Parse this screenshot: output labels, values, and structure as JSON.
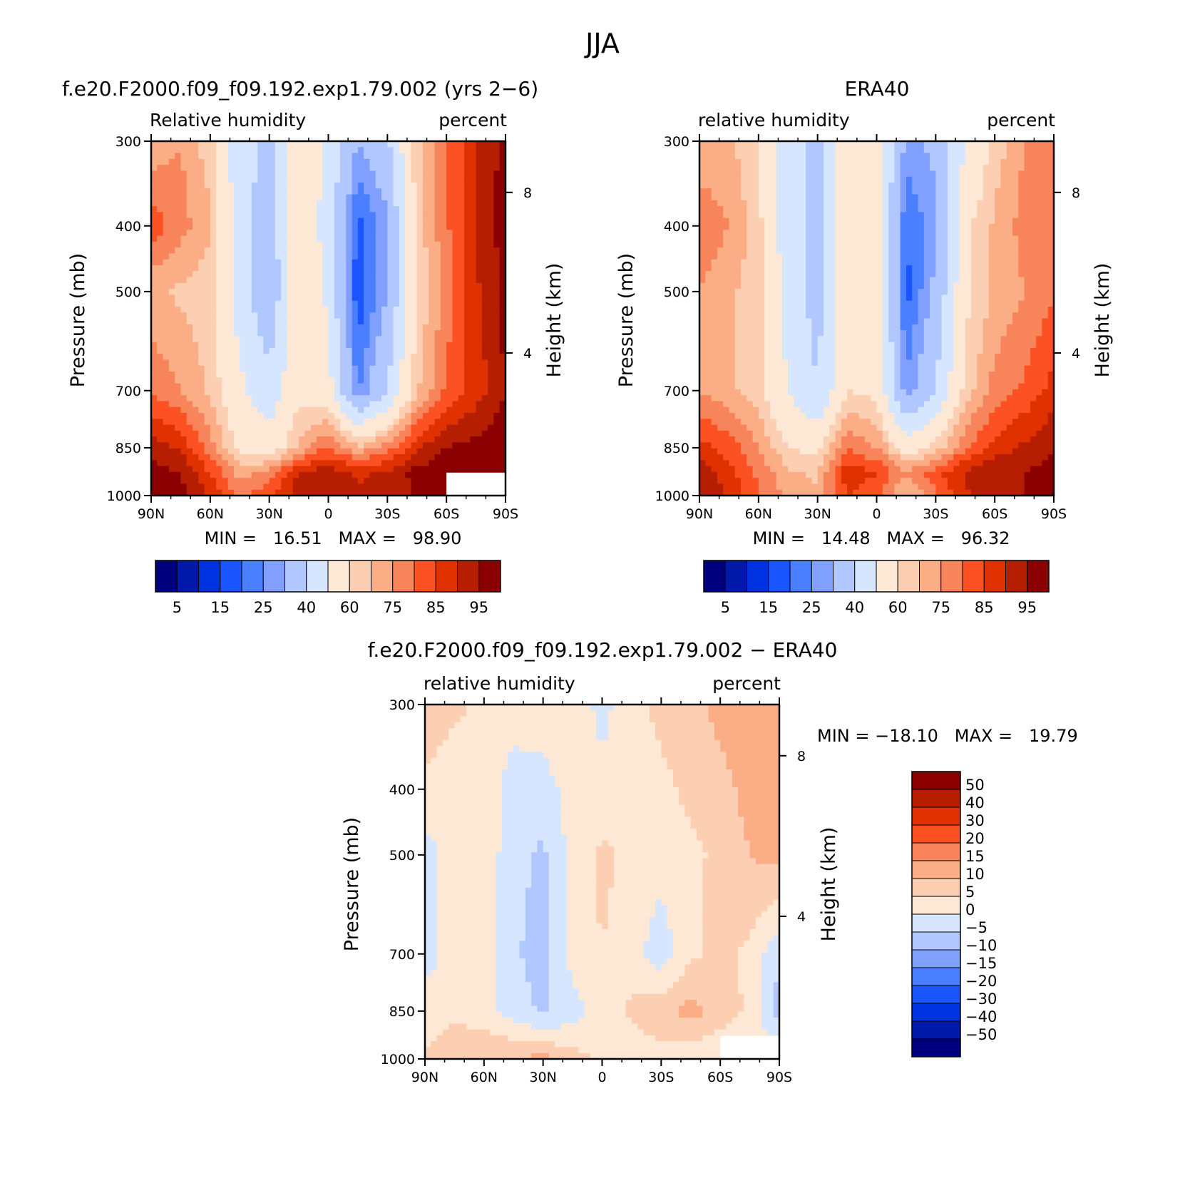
{
  "main_title": "JJA",
  "colors": {
    "rh_levels": [
      "#00007f",
      "#0019a8",
      "#0033e0",
      "#1a55ff",
      "#4a80ff",
      "#809fff",
      "#b0c8ff",
      "#d6e6ff",
      "#fde8d6",
      "#fccfb3",
      "#fbad85",
      "#f8845c",
      "#fb5123",
      "#e03100",
      "#b51e00",
      "#8a0000"
    ],
    "diff_levels": [
      "#00007f",
      "#0019a8",
      "#0033e0",
      "#1a55ff",
      "#4a80ff",
      "#809fff",
      "#b0c8ff",
      "#d6e6ff",
      "#fde8d6",
      "#fccfb3",
      "#fbad85",
      "#f8845c",
      "#fb5123",
      "#e03100",
      "#b51e00",
      "#8a0000"
    ]
  },
  "panels": {
    "model": {
      "title": "f.e20.F2000.f09_f09.192.exp1.79.002 (yrs 2−6)",
      "left_label": "Relative humidity",
      "right_label": "percent",
      "ylabel": "Pressure (mb)",
      "ylabel_right": "Height (km)",
      "stats": "MIN =   16.51   MAX =   98.90"
    },
    "obs": {
      "title": "ERA40",
      "left_label": "relative humidity",
      "right_label": "percent",
      "ylabel": "Pressure (mb)",
      "ylabel_right": "Height (km)",
      "stats": "MIN =   14.48   MAX =   96.32"
    },
    "diff": {
      "title": "f.e20.F2000.f09_f09.192.exp1.79.002 − ERA40",
      "left_label": "relative humidity",
      "right_label": "percent",
      "ylabel": "Pressure (mb)",
      "ylabel_right": "Height (km)",
      "stats": "MIN = −18.10   MAX =   19.79"
    }
  },
  "chart_data": [
    {
      "type": "heatmap",
      "title": "f.e20.F2000.f09_f09.192.exp1.79.002 (yrs 2−6)",
      "xlabel": "",
      "ylabel": "Pressure (mb)",
      "x_ticks": [
        "90N",
        "60N",
        "30N",
        "0",
        "30S",
        "60S",
        "90S"
      ],
      "y_ticks": [
        "300",
        "400",
        "500",
        "700",
        "850",
        "1000"
      ],
      "y_right_ticks": [
        "8",
        "4"
      ],
      "legend_levels": [
        5,
        10,
        15,
        20,
        25,
        30,
        40,
        50,
        60,
        65,
        70,
        75,
        80,
        85,
        90,
        95
      ],
      "legend_labels": [
        "5",
        "15",
        "25",
        "40",
        "60",
        "75",
        "85",
        "95"
      ],
      "lat": [
        90,
        75,
        60,
        45,
        30,
        15,
        0,
        -15,
        -30,
        -45,
        -60,
        -75,
        -90
      ],
      "pressure": [
        300,
        400,
        500,
        700,
        850,
        925,
        1000
      ],
      "values": [
        [
          66,
          70,
          62,
          44,
          38,
          58,
          48,
          30,
          38,
          64,
          74,
          85,
          92
        ],
        [
          78,
          72,
          66,
          44,
          34,
          58,
          46,
          18,
          28,
          62,
          74,
          86,
          92
        ],
        [
          66,
          64,
          62,
          46,
          30,
          60,
          48,
          16,
          30,
          60,
          72,
          84,
          92
        ],
        [
          74,
          70,
          64,
          52,
          44,
          58,
          54,
          24,
          40,
          64,
          76,
          82,
          90
        ],
        [
          88,
          84,
          72,
          58,
          54,
          66,
          76,
          66,
          72,
          84,
          90,
          92,
          94
        ],
        [
          92,
          90,
          80,
          68,
          72,
          86,
          88,
          84,
          86,
          92,
          94,
          95,
          96
        ],
        [
          96,
          92,
          84,
          74,
          78,
          88,
          90,
          86,
          88,
          90,
          92,
          94,
          96
        ]
      ],
      "missing_region": "60S–90S, 925–1000 mb",
      "MIN": 16.51,
      "MAX": 98.9
    },
    {
      "type": "heatmap",
      "title": "ERA40",
      "xlabel": "",
      "ylabel": "Pressure (mb)",
      "x_ticks": [
        "90N",
        "60N",
        "30N",
        "0",
        "30S",
        "60S",
        "90S"
      ],
      "y_ticks": [
        "300",
        "400",
        "500",
        "700",
        "850",
        "1000"
      ],
      "y_right_ticks": [
        "8",
        "4"
      ],
      "legend_levels": [
        5,
        10,
        15,
        20,
        25,
        30,
        40,
        50,
        60,
        65,
        70,
        75,
        80,
        85,
        90,
        95
      ],
      "legend_labels": [
        "5",
        "15",
        "25",
        "40",
        "60",
        "75",
        "85",
        "95"
      ],
      "lat": [
        90,
        75,
        60,
        45,
        30,
        15,
        0,
        -15,
        -30,
        -45,
        -60,
        -75,
        -90
      ],
      "pressure": [
        300,
        400,
        500,
        700,
        850,
        925,
        1000
      ],
      "values": [
        [
          66,
          66,
          60,
          44,
          38,
          56,
          56,
          28,
          32,
          50,
          62,
          70,
          74
        ],
        [
          74,
          70,
          62,
          44,
          36,
          56,
          56,
          20,
          28,
          58,
          66,
          72,
          74
        ],
        [
          70,
          66,
          62,
          46,
          36,
          58,
          58,
          18,
          32,
          58,
          66,
          70,
          74
        ],
        [
          70,
          66,
          62,
          50,
          40,
          60,
          58,
          26,
          40,
          62,
          72,
          76,
          82
        ],
        [
          82,
          78,
          70,
          60,
          58,
          74,
          70,
          56,
          62,
          74,
          82,
          86,
          90
        ],
        [
          88,
          82,
          74,
          66,
          64,
          84,
          80,
          70,
          78,
          86,
          90,
          90,
          92
        ],
        [
          90,
          84,
          76,
          68,
          66,
          80,
          76,
          64,
          74,
          84,
          88,
          90,
          92
        ]
      ],
      "MIN": 14.48,
      "MAX": 96.32
    },
    {
      "type": "heatmap",
      "title": "f.e20.F2000.f09_f09.192.exp1.79.002 − ERA40",
      "xlabel": "",
      "ylabel": "Pressure (mb)",
      "x_ticks": [
        "90N",
        "60N",
        "30N",
        "0",
        "30S",
        "60S",
        "90S"
      ],
      "y_ticks": [
        "300",
        "400",
        "500",
        "700",
        "850",
        "1000"
      ],
      "y_right_ticks": [
        "8",
        "4"
      ],
      "legend_levels": [
        -50,
        -40,
        -30,
        -20,
        -15,
        -10,
        -5,
        0,
        5,
        10,
        15,
        20,
        30,
        40,
        50
      ],
      "legend_labels": [
        "50",
        "40",
        "30",
        "20",
        "15",
        "10",
        "5",
        "0",
        "−5",
        "−10",
        "−15",
        "−20",
        "−30",
        "−40",
        "−50"
      ],
      "lat": [
        90,
        75,
        60,
        45,
        30,
        15,
        0,
        -15,
        -30,
        -45,
        -60,
        -75,
        -90
      ],
      "pressure": [
        300,
        400,
        500,
        700,
        850,
        925,
        1000
      ],
      "values": [
        [
          8,
          6,
          4,
          2,
          3,
          4,
          -2,
          4,
          6,
          8,
          12,
          14,
          10
        ],
        [
          4,
          2,
          2,
          -2,
          -2,
          2,
          2,
          3,
          4,
          6,
          8,
          12,
          12
        ],
        [
          -2,
          2,
          3,
          -3,
          -6,
          2,
          6,
          4,
          2,
          4,
          6,
          10,
          12
        ],
        [
          -2,
          2,
          3,
          -4,
          -8,
          2,
          5,
          2,
          -3,
          4,
          6,
          4,
          -4
        ],
        [
          2,
          4,
          2,
          -2,
          -6,
          -2,
          2,
          6,
          8,
          12,
          8,
          4,
          -8
        ],
        [
          4,
          6,
          6,
          4,
          2,
          2,
          2,
          4,
          6,
          6,
          4,
          2,
          0
        ],
        [
          6,
          8,
          6,
          10,
          12,
          8,
          4,
          2,
          0,
          2,
          2,
          2,
          2
        ]
      ],
      "missing_region": "60S–90S, 925–1000 mb",
      "MIN": -18.1,
      "MAX": 19.79
    }
  ]
}
